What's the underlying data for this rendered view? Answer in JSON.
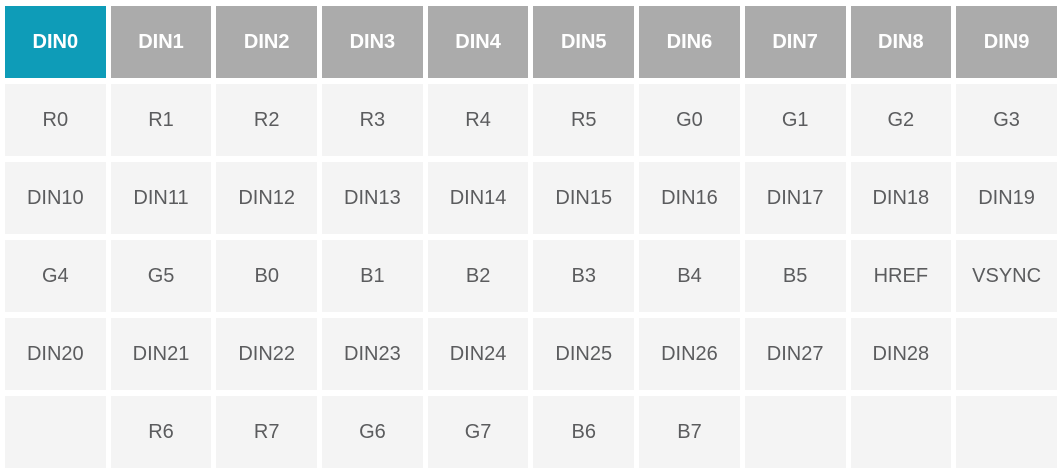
{
  "table": {
    "header": {
      "cells": [
        {
          "label": "DIN0",
          "highlighted": true
        },
        {
          "label": "DIN1",
          "highlighted": false
        },
        {
          "label": "DIN2",
          "highlighted": false
        },
        {
          "label": "DIN3",
          "highlighted": false
        },
        {
          "label": "DIN4",
          "highlighted": false
        },
        {
          "label": "DIN5",
          "highlighted": false
        },
        {
          "label": "DIN6",
          "highlighted": false
        },
        {
          "label": "DIN7",
          "highlighted": false
        },
        {
          "label": "DIN8",
          "highlighted": false
        },
        {
          "label": "DIN9",
          "highlighted": false
        }
      ]
    },
    "rows": [
      [
        "R0",
        "R1",
        "R2",
        "R3",
        "R4",
        "R5",
        "G0",
        "G1",
        "G2",
        "G3"
      ],
      [
        "DIN10",
        "DIN11",
        "DIN12",
        "DIN13",
        "DIN14",
        "DIN15",
        "DIN16",
        "DIN17",
        "DIN18",
        "DIN19"
      ],
      [
        "G4",
        "G5",
        "B0",
        "B1",
        "B2",
        "B3",
        "B4",
        "B5",
        "HREF",
        "VSYNC"
      ],
      [
        "DIN20",
        "DIN21",
        "DIN22",
        "DIN23",
        "DIN24",
        "DIN25",
        "DIN26",
        "DIN27",
        "DIN28",
        ""
      ],
      [
        "",
        "R6",
        "R7",
        "G6",
        "G7",
        "B6",
        "B7",
        "",
        "",
        ""
      ]
    ],
    "colors": {
      "highlight": "#0E9CB8",
      "header_bg": "#ABABAB",
      "header_text": "#FFFFFF",
      "cell_bg": "#F4F4F4",
      "cell_text": "#5B5C5E",
      "page_bg": "#FFFFFF"
    }
  }
}
